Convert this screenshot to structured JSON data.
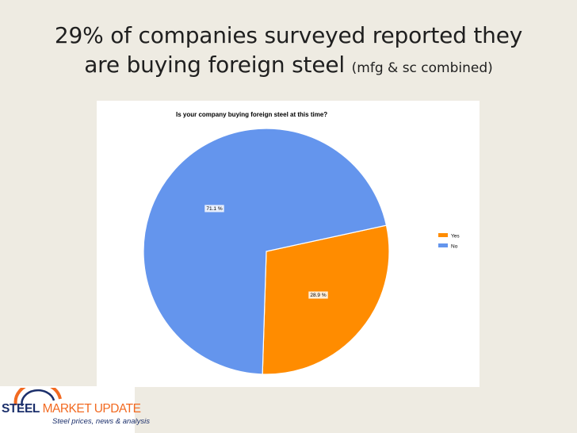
{
  "slide": {
    "title_line1": "29% of companies surveyed reported they",
    "title_line2": "are buying foreign steel",
    "title_suffix": "(mfg & sc combined)"
  },
  "chart_data": {
    "type": "pie",
    "title_parts": [
      "Is your company ",
      "buying foreign steel",
      " at this time?"
    ],
    "slices": [
      {
        "label": "Yes",
        "value": 28.9,
        "display": "28.9 %",
        "color": "#ff8c00"
      },
      {
        "label": "No",
        "value": 71.1,
        "display": "71.1 %",
        "color": "#6495ed"
      }
    ],
    "legend_position": "right"
  },
  "logo": {
    "brand_main": "STEEL",
    "brand_accent": "MARKET UPDATE",
    "tagline": "Steel prices, news & analysis",
    "colors": {
      "navy": "#1b2f6b",
      "orange": "#f26a21"
    }
  }
}
